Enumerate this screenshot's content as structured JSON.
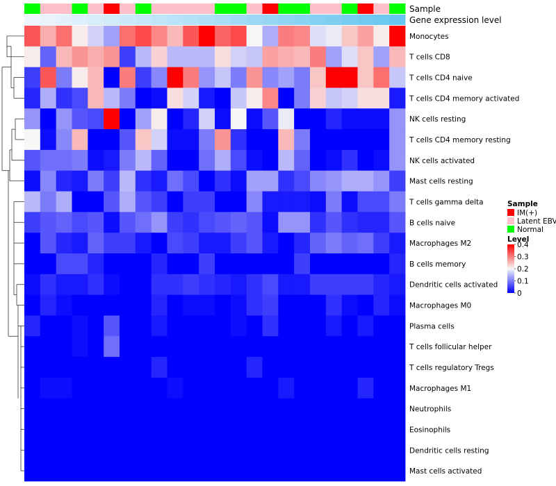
{
  "chart_data": {
    "type": "heatmap",
    "colorscale": {
      "low_color": "#0000FF",
      "mid_color": "#F7F7F7",
      "high_color": "#FF0000",
      "range": [
        0,
        0.4
      ],
      "mid_value": 0.2
    },
    "annotation_tracks": [
      {
        "name": "Sample",
        "values": [
          "Normal",
          "Latent EBV",
          "Latent EBV",
          "Normal",
          "Latent EBV",
          "IM(+)",
          "Latent EBV",
          "Normal",
          "Latent EBV",
          "Latent EBV",
          "Latent EBV",
          "Latent EBV",
          "Normal",
          "Normal",
          "Latent EBV",
          "IM(+)",
          "Normal",
          "Normal",
          "Latent EBV",
          "Latent EBV",
          "Normal",
          "IM(+)",
          "Latent EBV",
          "Normal"
        ]
      },
      {
        "name": "Gene expression level",
        "values": [
          0.02,
          0.06,
          0.1,
          0.14,
          0.18,
          0.22,
          0.26,
          0.3,
          0.34,
          0.38,
          0.42,
          0.46,
          0.5,
          0.54,
          0.58,
          0.62,
          0.66,
          0.7,
          0.74,
          0.78,
          0.82,
          0.86,
          0.9,
          0.94
        ]
      }
    ],
    "rows": [
      "Monocytes",
      "T cells CD8",
      "T cells CD4 naive",
      "T cells CD4 memory activated",
      "NK cells resting",
      "T cells CD4 memory resting",
      "NK cells activated",
      "Mast cells resting",
      "T cells gamma delta",
      "B cells naive",
      "Macrophages M2",
      "B cells memory",
      "Dendritic cells activated",
      "Macrophages M0",
      "Plasma cells",
      "T cells follicular helper",
      "T cells regulatory  Tregs",
      "Macrophages M1",
      "Neutrophils",
      "Eosinophils",
      "Dendritic cells resting",
      "Mast cells activated"
    ],
    "values": [
      [
        0.33,
        0.26,
        0.31,
        0.21,
        0.17,
        0.13,
        0.31,
        0.34,
        0.29,
        0.25,
        0.33,
        0.4,
        0.32,
        0.34,
        0.2,
        0.14,
        0.3,
        0.29,
        0.18,
        0.19,
        0.24,
        0.27,
        0.21,
        0.4
      ],
      [
        0.21,
        0.08,
        0.25,
        0.28,
        0.26,
        0.28,
        0.05,
        0.15,
        0.23,
        0.15,
        0.15,
        0.15,
        0.22,
        0.17,
        0.16,
        0.27,
        0.26,
        0.25,
        0.3,
        0.13,
        0.18,
        0.24,
        0.13,
        0.25
      ],
      [
        0.05,
        0.33,
        0.1,
        0.21,
        0.25,
        0.0,
        0.3,
        0.05,
        0.11,
        0.4,
        0.3,
        0.12,
        0.16,
        0.1,
        0.28,
        0.11,
        0.13,
        0.1,
        0.24,
        0.4,
        0.4,
        0.24,
        0.31,
        0.16
      ],
      [
        0.03,
        0.14,
        0.04,
        0.06,
        0.25,
        0.15,
        0.1,
        0.0,
        0.01,
        0.22,
        0.17,
        0.02,
        0.0,
        0.16,
        0.21,
        0.29,
        0.0,
        0.1,
        0.23,
        0.16,
        0.17,
        0.22,
        0.22,
        0.02
      ],
      [
        0.12,
        0.0,
        0.12,
        0.07,
        0.06,
        0.4,
        0.0,
        0.13,
        0.21,
        0.0,
        0.03,
        0.17,
        0.01,
        0.2,
        0.01,
        0.07,
        0.19,
        0.0,
        0.0,
        0.03,
        0.01,
        0.01,
        0.01,
        0.12
      ],
      [
        0.2,
        0.01,
        0.11,
        0.25,
        0.0,
        0.0,
        0.07,
        0.24,
        0.17,
        0.01,
        0.01,
        0.1,
        0.28,
        0.04,
        0.0,
        0.0,
        0.25,
        0.1,
        0.0,
        0.0,
        0.0,
        0.0,
        0.0,
        0.12
      ],
      [
        0.07,
        0.09,
        0.09,
        0.1,
        0.01,
        0.02,
        0.1,
        0.15,
        0.08,
        0.0,
        0.0,
        0.09,
        0.14,
        0.06,
        0.01,
        0.0,
        0.15,
        0.08,
        0.0,
        0.01,
        0.04,
        0.0,
        0.01,
        0.12
      ],
      [
        0.01,
        0.11,
        0.03,
        0.02,
        0.1,
        0.05,
        0.15,
        0.04,
        0.02,
        0.09,
        0.06,
        0.0,
        0.04,
        0.01,
        0.13,
        0.13,
        0.04,
        0.06,
        0.11,
        0.12,
        0.14,
        0.14,
        0.12,
        0.05
      ],
      [
        0.15,
        0.1,
        0.14,
        0.0,
        0.0,
        0.07,
        0.14,
        0.07,
        0.05,
        0.0,
        0.05,
        0.05,
        0.0,
        0.0,
        0.11,
        0.02,
        0.02,
        0.02,
        0.01,
        0.1,
        0.01,
        0.06,
        0.06,
        0.1
      ],
      [
        0.05,
        0.07,
        0.08,
        0.06,
        0.07,
        0.01,
        0.07,
        0.09,
        0.12,
        0.05,
        0.04,
        0.06,
        0.07,
        0.08,
        0.07,
        0.01,
        0.12,
        0.12,
        0.04,
        0.07,
        0.04,
        0.03,
        0.03,
        0.07
      ],
      [
        0.0,
        0.07,
        0.03,
        0.02,
        0.08,
        0.05,
        0.05,
        0.02,
        0.0,
        0.06,
        0.05,
        0.02,
        0.02,
        0.05,
        0.07,
        0.02,
        0.0,
        0.03,
        0.08,
        0.1,
        0.08,
        0.09,
        0.05,
        0.02
      ],
      [
        0.0,
        0.0,
        0.06,
        0.06,
        0.03,
        0.0,
        0.0,
        0.0,
        0.03,
        0.0,
        0.0,
        0.05,
        0.0,
        0.0,
        0.0,
        0.0,
        0.0,
        0.05,
        0.0,
        0.0,
        0.0,
        0.0,
        0.0,
        0.03
      ],
      [
        0.01,
        0.04,
        0.02,
        0.02,
        0.04,
        0.01,
        0.0,
        0.0,
        0.04,
        0.04,
        0.05,
        0.04,
        0.03,
        0.02,
        0.04,
        0.06,
        0.02,
        0.02,
        0.05,
        0.05,
        0.05,
        0.05,
        0.03,
        0.02
      ],
      [
        0.0,
        0.03,
        0.01,
        0.0,
        0.0,
        0.0,
        0.0,
        0.0,
        0.03,
        0.0,
        0.01,
        0.01,
        0.0,
        0.01,
        0.04,
        0.05,
        0.0,
        0.0,
        0.0,
        0.04,
        0.01,
        0.0,
        0.03,
        0.01
      ],
      [
        0.03,
        0.0,
        0.0,
        0.01,
        0.0,
        0.07,
        0.0,
        0.0,
        0.02,
        0.0,
        0.0,
        0.0,
        0.0,
        0.01,
        0.0,
        0.04,
        0.0,
        0.0,
        0.0,
        0.02,
        0.0,
        0.02,
        0.0,
        0.0
      ],
      [
        0.0,
        0.0,
        0.0,
        0.01,
        0.0,
        0.09,
        0.0,
        0.0,
        0.0,
        0.0,
        0.0,
        0.0,
        0.0,
        0.0,
        0.0,
        0.0,
        0.0,
        0.0,
        0.0,
        0.0,
        0.0,
        0.0,
        0.0,
        0.0
      ],
      [
        0.0,
        0.0,
        0.0,
        0.0,
        0.0,
        0.0,
        0.0,
        0.0,
        0.03,
        0.0,
        0.0,
        0.0,
        0.0,
        0.0,
        0.03,
        0.0,
        0.0,
        0.0,
        0.0,
        0.0,
        0.0,
        0.0,
        0.0,
        0.0
      ],
      [
        0.0,
        0.01,
        0.01,
        0.0,
        0.0,
        0.0,
        0.0,
        0.0,
        0.0,
        0.01,
        0.0,
        0.0,
        0.0,
        0.0,
        0.0,
        0.0,
        0.02,
        0.0,
        0.0,
        0.0,
        0.0,
        0.03,
        0.0,
        0.0
      ],
      [
        0,
        0,
        0,
        0,
        0,
        0,
        0,
        0,
        0,
        0,
        0,
        0,
        0,
        0,
        0,
        0,
        0,
        0,
        0,
        0,
        0,
        0,
        0,
        0
      ],
      [
        0,
        0,
        0,
        0,
        0,
        0,
        0,
        0,
        0,
        0,
        0,
        0,
        0,
        0,
        0,
        0,
        0,
        0,
        0,
        0,
        0,
        0,
        0,
        0
      ],
      [
        0,
        0,
        0,
        0,
        0,
        0,
        0,
        0,
        0,
        0,
        0,
        0,
        0,
        0,
        0,
        0,
        0,
        0,
        0,
        0,
        0,
        0,
        0,
        0
      ],
      [
        0,
        0,
        0,
        0,
        0,
        0,
        0,
        0,
        0,
        0,
        0,
        0,
        0,
        0,
        0,
        0,
        0,
        0,
        0,
        0,
        0,
        0,
        0,
        0
      ]
    ],
    "legend": {
      "sample_title": "Sample",
      "sample_entries": [
        {
          "label": "IM(+)",
          "color": "#FF0000"
        },
        {
          "label": "Latent EBV",
          "color": "#FFC0CB"
        },
        {
          "label": "Normal",
          "color": "#00FF00"
        }
      ],
      "level_title": "Level",
      "level_ticks": [
        "0.4",
        "0.3",
        "0.2",
        "0.1",
        "0"
      ]
    },
    "gene_expression_colors": {
      "low": "#F2F6FC",
      "high": "#5EC3EE"
    }
  }
}
